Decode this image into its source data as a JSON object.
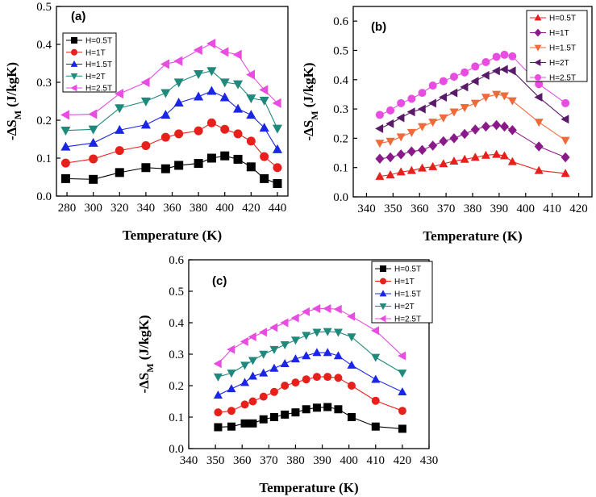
{
  "chart_data": [
    {
      "type": "line",
      "panel_label": "(a)",
      "xlabel": "Temperature (K)",
      "ylabel": "-ΔS",
      "ylabel_sub": "M",
      "ylabel_unit": "(J/kgK)",
      "xlim": [
        272,
        448
      ],
      "ylim": [
        0,
        0.5
      ],
      "xticks": [
        280,
        300,
        320,
        340,
        360,
        380,
        400,
        420,
        440
      ],
      "yticks": [
        0.0,
        0.1,
        0.2,
        0.3,
        0.4,
        0.5
      ],
      "ytick_labels": [
        "0.0",
        "0.1",
        "0.2",
        "0.3",
        "0.4",
        "0.5"
      ],
      "legend": "top-left",
      "x": [
        279,
        300,
        320,
        340,
        355,
        365,
        380,
        390,
        400,
        410,
        420,
        430,
        440
      ],
      "series": [
        {
          "name": "H=0.5T",
          "marker": "square",
          "color": "#000000",
          "values": [
            0.046,
            0.044,
            0.062,
            0.075,
            0.072,
            0.081,
            0.086,
            0.1,
            0.106,
            0.097,
            0.077,
            0.046,
            0.033
          ]
        },
        {
          "name": "H=1T",
          "marker": "circle",
          "color": "#e8201c",
          "values": [
            0.087,
            0.098,
            0.12,
            0.133,
            0.155,
            0.164,
            0.172,
            0.193,
            0.176,
            0.164,
            0.145,
            0.104,
            0.075
          ]
        },
        {
          "name": "H=1.5T",
          "marker": "triangle-up",
          "color": "#1a25e6",
          "values": [
            0.13,
            0.14,
            0.174,
            0.188,
            0.214,
            0.246,
            0.262,
            0.277,
            0.26,
            0.23,
            0.214,
            0.18,
            0.123
          ]
        },
        {
          "name": "H=2T",
          "marker": "triangle-down",
          "color": "#1f8a7c",
          "values": [
            0.173,
            0.176,
            0.232,
            0.25,
            0.272,
            0.3,
            0.322,
            0.33,
            0.3,
            0.295,
            0.258,
            0.252,
            0.178
          ]
        },
        {
          "name": "H=2.5T",
          "marker": "triangle-left",
          "color": "#e84ce0",
          "values": [
            0.214,
            0.216,
            0.27,
            0.3,
            0.348,
            0.356,
            0.385,
            0.402,
            0.38,
            0.373,
            0.32,
            0.28,
            0.245
          ]
        }
      ]
    },
    {
      "type": "line",
      "panel_label": "(b)",
      "xlabel": "Temperature (K)",
      "ylabel": "-ΔS",
      "ylabel_sub": "M",
      "ylabel_unit": "(J/kgK)",
      "xlim": [
        335,
        425
      ],
      "ylim": [
        0,
        0.65
      ],
      "xticks": [
        340,
        350,
        360,
        370,
        380,
        390,
        400,
        410,
        420
      ],
      "yticks": [
        0.0,
        0.1,
        0.2,
        0.3,
        0.4,
        0.5,
        0.6
      ],
      "ytick_labels": [
        "0.0",
        "0.1",
        "0.2",
        "0.3",
        "0.4",
        "0.5",
        "0.6"
      ],
      "legend": "top-right",
      "x": [
        345,
        349,
        353,
        357,
        361,
        365,
        369,
        373,
        377,
        381,
        385,
        389,
        392,
        395,
        405,
        415
      ],
      "series": [
        {
          "name": "H=0.5T",
          "marker": "triangle-up",
          "color": "#e8201c",
          "values": [
            0.07,
            0.075,
            0.085,
            0.09,
            0.098,
            0.103,
            0.113,
            0.122,
            0.128,
            0.135,
            0.142,
            0.145,
            0.14,
            0.12,
            0.09,
            0.08
          ]
        },
        {
          "name": "H=1T",
          "marker": "diamond",
          "color": "#8a1a8a",
          "values": [
            0.13,
            0.135,
            0.145,
            0.155,
            0.16,
            0.175,
            0.19,
            0.2,
            0.215,
            0.23,
            0.24,
            0.245,
            0.24,
            0.228,
            0.172,
            0.135
          ]
        },
        {
          "name": "H=1.5T",
          "marker": "triangle-down",
          "color": "#ef6a3a",
          "values": [
            0.183,
            0.19,
            0.205,
            0.22,
            0.24,
            0.255,
            0.27,
            0.29,
            0.305,
            0.32,
            0.34,
            0.35,
            0.345,
            0.328,
            0.255,
            0.193
          ]
        },
        {
          "name": "H=2T",
          "marker": "triangle-left",
          "color": "#5a1a6a",
          "values": [
            0.233,
            0.25,
            0.27,
            0.29,
            0.3,
            0.32,
            0.34,
            0.355,
            0.375,
            0.395,
            0.415,
            0.43,
            0.435,
            0.43,
            0.34,
            0.265
          ]
        },
        {
          "name": "H=2.5T",
          "marker": "circle",
          "color": "#e84ce0",
          "values": [
            0.28,
            0.295,
            0.32,
            0.335,
            0.355,
            0.38,
            0.395,
            0.41,
            0.425,
            0.445,
            0.46,
            0.478,
            0.485,
            0.48,
            0.385,
            0.32
          ]
        }
      ]
    },
    {
      "type": "line",
      "panel_label": "(c)",
      "xlabel": "Temperature (K)",
      "ylabel": "-ΔS",
      "ylabel_sub": "M",
      "ylabel_unit": "(J/kgK)",
      "xlim": [
        340,
        430
      ],
      "ylim": [
        0,
        0.6
      ],
      "xticks": [
        340,
        350,
        360,
        370,
        380,
        390,
        400,
        410,
        420,
        430
      ],
      "yticks": [
        0.0,
        0.1,
        0.2,
        0.3,
        0.4,
        0.5,
        0.6
      ],
      "ytick_labels": [
        "0.0",
        "0.1",
        "0.2",
        "0.3",
        "0.4",
        "0.5",
        "0.6"
      ],
      "legend": "top-right",
      "x": [
        351,
        356,
        361,
        364,
        368,
        372,
        376,
        380,
        384,
        388,
        392,
        396,
        401,
        410,
        420
      ],
      "series": [
        {
          "name": "H=0.5T",
          "marker": "square",
          "color": "#000000",
          "values": [
            0.068,
            0.07,
            0.08,
            0.08,
            0.093,
            0.1,
            0.108,
            0.115,
            0.125,
            0.13,
            0.132,
            0.125,
            0.1,
            0.07,
            0.063
          ]
        },
        {
          "name": "H=1T",
          "marker": "circle",
          "color": "#e8201c",
          "values": [
            0.115,
            0.12,
            0.14,
            0.15,
            0.165,
            0.18,
            0.2,
            0.21,
            0.22,
            0.228,
            0.228,
            0.225,
            0.2,
            0.152,
            0.12
          ]
        },
        {
          "name": "H=1.5T",
          "marker": "triangle-up",
          "color": "#1a25e6",
          "values": [
            0.17,
            0.19,
            0.21,
            0.23,
            0.24,
            0.255,
            0.27,
            0.285,
            0.295,
            0.305,
            0.305,
            0.295,
            0.265,
            0.22,
            0.18
          ]
        },
        {
          "name": "H=2T",
          "marker": "triangle-down",
          "color": "#1f8a7c",
          "values": [
            0.228,
            0.24,
            0.265,
            0.28,
            0.3,
            0.315,
            0.33,
            0.345,
            0.36,
            0.37,
            0.372,
            0.37,
            0.355,
            0.29,
            0.24
          ]
        },
        {
          "name": "H=2.5T",
          "marker": "triangle-left",
          "color": "#e84ce0",
          "values": [
            0.27,
            0.315,
            0.34,
            0.355,
            0.37,
            0.385,
            0.4,
            0.415,
            0.435,
            0.445,
            0.445,
            0.443,
            0.42,
            0.375,
            0.295
          ]
        }
      ]
    }
  ]
}
